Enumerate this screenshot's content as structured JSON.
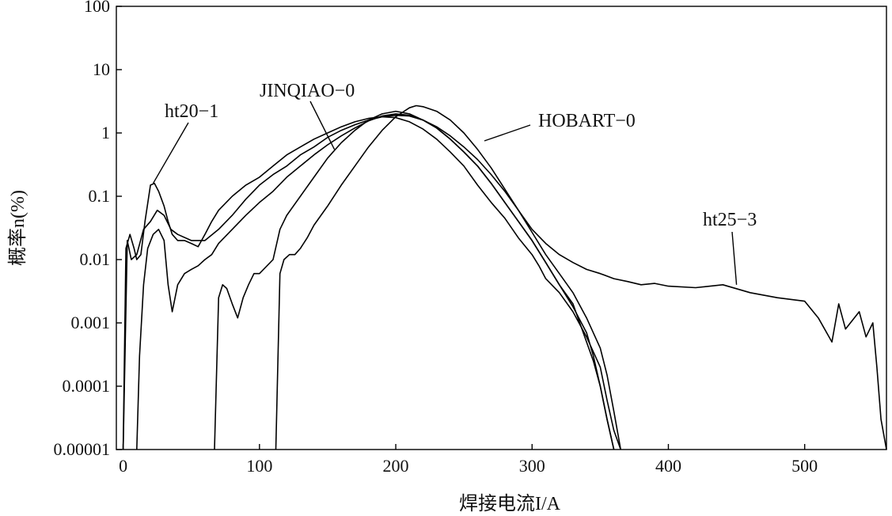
{
  "chart_data": {
    "type": "line",
    "title": "",
    "xlabel": "焊接电流I/A",
    "ylabel": "概率n(%)",
    "xlim": [
      -5,
      560
    ],
    "ylim": [
      1e-05,
      100
    ],
    "yscale": "log",
    "x_ticks": [
      0,
      100,
      200,
      300,
      400,
      500
    ],
    "x_tick_labels": [
      "0",
      "100",
      "200",
      "300",
      "400",
      "500"
    ],
    "y_ticks": [
      1e-05,
      0.0001,
      0.001,
      0.01,
      0.1,
      1,
      10,
      100
    ],
    "y_tick_labels": [
      "0.00001",
      "0.0001",
      "0.001",
      "0.01",
      "0.1",
      "1",
      "10",
      "100"
    ],
    "grid": false,
    "series": [
      {
        "name": "ht20-1",
        "x": [
          0,
          2,
          5,
          8,
          10,
          13,
          16,
          20,
          23,
          26,
          30,
          33,
          36,
          40,
          45,
          50,
          55,
          60,
          65,
          70,
          80,
          90,
          100,
          110,
          120,
          130,
          140,
          150,
          160,
          170,
          180,
          190,
          200,
          210,
          220,
          230,
          240,
          250,
          260,
          270,
          280,
          290,
          300,
          305,
          310,
          320,
          330,
          340,
          350,
          355,
          360,
          365
        ],
        "y": [
          1e-05,
          0.015,
          0.025,
          0.015,
          0.01,
          0.012,
          0.04,
          0.15,
          0.16,
          0.12,
          0.07,
          0.04,
          0.025,
          0.02,
          0.02,
          0.018,
          0.016,
          0.025,
          0.04,
          0.06,
          0.1,
          0.15,
          0.2,
          0.3,
          0.45,
          0.6,
          0.8,
          1.0,
          1.25,
          1.5,
          1.7,
          1.8,
          1.75,
          1.5,
          1.15,
          0.8,
          0.5,
          0.3,
          0.15,
          0.08,
          0.045,
          0.022,
          0.012,
          0.008,
          0.005,
          0.003,
          0.0015,
          0.0006,
          0.0002,
          6e-05,
          2e-05,
          1e-05
        ]
      },
      {
        "name": "JINQIAO-0",
        "x": [
          10,
          12,
          15,
          18,
          22,
          26,
          30,
          33,
          36,
          40,
          45,
          50,
          55,
          60,
          65,
          70,
          80,
          90,
          100,
          110,
          120,
          130,
          140,
          150,
          160,
          170,
          180,
          190,
          200,
          210,
          220,
          230,
          240,
          250,
          260,
          270,
          280,
          290,
          300,
          310,
          320,
          330,
          335,
          340,
          345,
          350,
          355,
          360
        ],
        "y": [
          1e-05,
          0.0003,
          0.004,
          0.015,
          0.025,
          0.03,
          0.02,
          0.004,
          0.0015,
          0.004,
          0.006,
          0.007,
          0.008,
          0.01,
          0.012,
          0.018,
          0.03,
          0.05,
          0.08,
          0.12,
          0.2,
          0.3,
          0.45,
          0.65,
          0.9,
          1.2,
          1.55,
          1.85,
          2.0,
          1.9,
          1.6,
          1.2,
          0.8,
          0.5,
          0.3,
          0.16,
          0.08,
          0.04,
          0.02,
          0.009,
          0.004,
          0.002,
          0.001,
          0.0005,
          0.00025,
          0.0001,
          3e-05,
          1e-05
        ]
      },
      {
        "name": "",
        "x": [
          67,
          70,
          73,
          76,
          80,
          84,
          88,
          92,
          96,
          100,
          110,
          115,
          120,
          130,
          140,
          150,
          160,
          170,
          180,
          190,
          200,
          210,
          220,
          230,
          240,
          250,
          260,
          270,
          280,
          290,
          300,
          310,
          320,
          330,
          340,
          345,
          350,
          355,
          360
        ],
        "y": [
          1e-05,
          0.0025,
          0.004,
          0.0035,
          0.002,
          0.0012,
          0.0025,
          0.004,
          0.006,
          0.006,
          0.01,
          0.03,
          0.05,
          0.1,
          0.2,
          0.4,
          0.7,
          1.1,
          1.6,
          2.0,
          2.2,
          2.0,
          1.6,
          1.2,
          0.8,
          0.5,
          0.3,
          0.16,
          0.08,
          0.04,
          0.02,
          0.009,
          0.004,
          0.0018,
          0.0007,
          0.0003,
          0.0001,
          3e-05,
          1e-05
        ]
      },
      {
        "name": "HOBART-0",
        "x": [
          112,
          115,
          118,
          122,
          126,
          130,
          135,
          140,
          150,
          160,
          170,
          180,
          190,
          200,
          210,
          215,
          220,
          230,
          240,
          250,
          260,
          270,
          280,
          290,
          300,
          310,
          320,
          330,
          340,
          350,
          355,
          360,
          365
        ],
        "y": [
          1e-05,
          0.006,
          0.01,
          0.012,
          0.012,
          0.015,
          0.022,
          0.035,
          0.07,
          0.15,
          0.3,
          0.6,
          1.1,
          1.8,
          2.5,
          2.7,
          2.6,
          2.2,
          1.6,
          1.0,
          0.55,
          0.28,
          0.13,
          0.06,
          0.027,
          0.012,
          0.006,
          0.003,
          0.0012,
          0.0004,
          0.00015,
          4e-05,
          1e-05
        ]
      },
      {
        "name": "ht25-3",
        "x": [
          0,
          3,
          6,
          10,
          15,
          20,
          25,
          30,
          35,
          40,
          50,
          60,
          70,
          80,
          90,
          100,
          110,
          120,
          130,
          140,
          150,
          160,
          170,
          180,
          190,
          200,
          210,
          220,
          230,
          240,
          250,
          260,
          270,
          280,
          290,
          300,
          310,
          320,
          330,
          340,
          350,
          360,
          370,
          380,
          390,
          400,
          420,
          440,
          460,
          480,
          500,
          510,
          520,
          525,
          530,
          540,
          545,
          550,
          553,
          556,
          560
        ],
        "y": [
          1e-05,
          0.02,
          0.01,
          0.012,
          0.03,
          0.04,
          0.06,
          0.05,
          0.03,
          0.025,
          0.02,
          0.02,
          0.03,
          0.05,
          0.09,
          0.15,
          0.22,
          0.3,
          0.45,
          0.6,
          0.85,
          1.1,
          1.35,
          1.6,
          1.8,
          1.9,
          1.85,
          1.6,
          1.25,
          0.9,
          0.6,
          0.38,
          0.22,
          0.12,
          0.06,
          0.03,
          0.018,
          0.012,
          0.009,
          0.007,
          0.006,
          0.005,
          0.0045,
          0.004,
          0.0042,
          0.0038,
          0.0036,
          0.004,
          0.003,
          0.0025,
          0.0022,
          0.0012,
          0.0005,
          0.002,
          0.0008,
          0.0015,
          0.0006,
          0.001,
          0.0002,
          3e-05,
          1e-05
        ]
      }
    ],
    "annotations": [
      {
        "text": "ht20−1",
        "series": 0,
        "x": 22,
        "y": 0.16
      },
      {
        "text": "JINQIAO−0",
        "series": 1,
        "x": 155,
        "y": 0.55
      },
      {
        "text": "HOBART−0",
        "series": 3,
        "x": 265,
        "y": 0.75
      },
      {
        "text": "ht25−3",
        "series": 4,
        "x": 450,
        "y": 0.004
      }
    ]
  }
}
